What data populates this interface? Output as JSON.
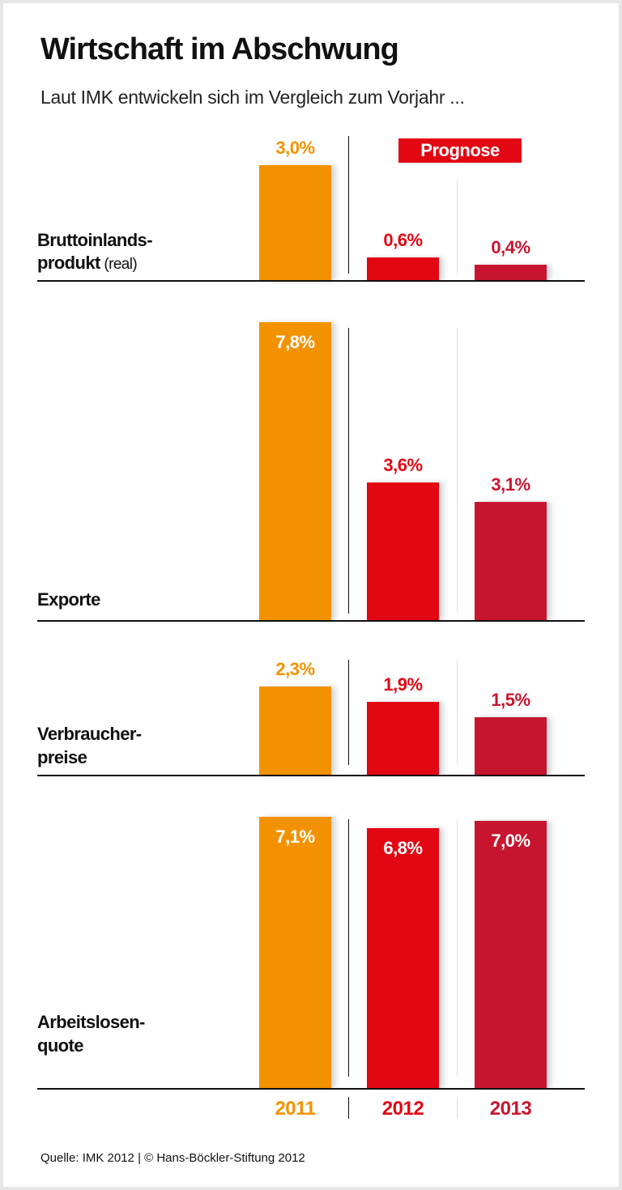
{
  "title": "Wirtschaft im Abschwung",
  "subtitle": "Laut IMK entwickeln sich im Vergleich zum Vorjahr ...",
  "prognose_label": "Prognose",
  "source": "Quelle: IMK 2012 | © Hans-Böckler-Stiftung 2012",
  "chart_data": {
    "type": "bar",
    "title": "Wirtschaft im Abschwung",
    "unit": "%",
    "categories": [
      "2011",
      "2012",
      "2013"
    ],
    "category_colors": [
      "#F39200",
      "#E30613",
      "#C8152F"
    ],
    "forecast_categories": [
      "2012",
      "2013"
    ],
    "panels": [
      {
        "label_line1": "Bruttoinlands-",
        "label_line2": "produkt",
        "label_note": "(real)",
        "values": [
          3.0,
          0.6,
          0.4
        ],
        "value_labels": [
          "3,0%",
          "0,6%",
          "0,4%"
        ]
      },
      {
        "label_line1": "Exporte",
        "label_line2": "",
        "label_note": "",
        "values": [
          7.8,
          3.6,
          3.1
        ],
        "value_labels": [
          "7,8%",
          "3,6%",
          "3,1%"
        ]
      },
      {
        "label_line1": "Verbraucher-",
        "label_line2": "preise",
        "label_note": "",
        "values": [
          2.3,
          1.9,
          1.5
        ],
        "value_labels": [
          "2,3%",
          "1,9%",
          "1,5%"
        ]
      },
      {
        "label_line1": "Arbeitslosen-",
        "label_line2": "quote",
        "label_note": "",
        "values": [
          7.1,
          6.8,
          7.0
        ],
        "value_labels": [
          "7,1%",
          "6,8%",
          "7,0%"
        ]
      }
    ]
  }
}
